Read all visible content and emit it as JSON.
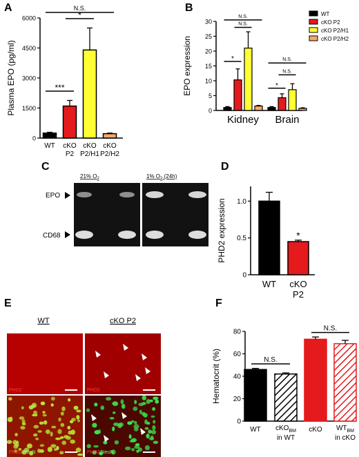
{
  "chart_data": [
    {
      "panel": "A",
      "type": "bar",
      "ylabel": "Plasma EPO (pg/ml)",
      "ylim": [
        0,
        6000
      ],
      "yticks": [
        0,
        1500,
        3000,
        4500,
        6000
      ],
      "category_lines": [
        [
          "WT"
        ],
        [
          "cKO",
          "P2"
        ],
        [
          "cKO",
          "P2/H1"
        ],
        [
          "cKO",
          "P2/H2"
        ]
      ],
      "values": [
        250,
        1600,
        4400,
        220
      ],
      "errors": [
        40,
        280,
        1100,
        30
      ],
      "colors": [
        "#000000",
        "#e41a1c",
        "#ffff33",
        "#f5a96b"
      ],
      "significance": [
        {
          "from": 0,
          "to": 1,
          "label": "***"
        },
        {
          "from": 1,
          "to": 2,
          "label": "*"
        },
        {
          "from": 0,
          "to": 3,
          "label": "N.S."
        }
      ]
    },
    {
      "panel": "B",
      "type": "bar",
      "ylabel": "EPO expression",
      "ylim": [
        0,
        30
      ],
      "yticks": [
        0,
        5,
        10,
        15,
        20,
        25,
        30
      ],
      "groups": [
        "Kidney",
        "Brain"
      ],
      "series": [
        {
          "name": "WT",
          "color": "#000000",
          "values": [
            1.0,
            1.0
          ],
          "errors": [
            0.3,
            0.3
          ]
        },
        {
          "name": "cKO P2",
          "color": "#e41a1c",
          "values": [
            10.3,
            4.3
          ],
          "errors": [
            3.7,
            1.3
          ]
        },
        {
          "name": "cKO P2/H1",
          "color": "#ffff33",
          "values": [
            21.0,
            7.0
          ],
          "errors": [
            5.5,
            2.0
          ]
        },
        {
          "name": "cKO P2/H2",
          "color": "#f5a96b",
          "values": [
            1.5,
            0.7
          ],
          "errors": [
            0.2,
            0.2
          ]
        }
      ],
      "significance": [
        {
          "group": 0,
          "from": 0,
          "to": 1,
          "label": "*",
          "y": 16.5
        },
        {
          "group": 0,
          "from": 1,
          "to": 2,
          "label": "N.S.",
          "y": 28
        },
        {
          "group": 0,
          "from": 0,
          "to": 3,
          "label": "N.S.",
          "y": 30.5
        },
        {
          "group": 1,
          "from": 0,
          "to": 1,
          "label": "*",
          "y": 7.5
        },
        {
          "group": 1,
          "from": 1,
          "to": 2,
          "label": "N.S.",
          "y": 12
        },
        {
          "group": 1,
          "from": 0,
          "to": 3,
          "label": "N.S.",
          "y": 16
        }
      ],
      "legend_position": "top-right"
    },
    {
      "panel": "D",
      "type": "bar",
      "ylabel": "PHD2 expression",
      "ylim": [
        0,
        1.0
      ],
      "yticks": [
        0,
        0.5,
        1.0
      ],
      "ytick_labels": [
        "0",
        "0.5",
        "1.0"
      ],
      "category_lines": [
        [
          "WT"
        ],
        [
          "cKO",
          "P2"
        ]
      ],
      "values": [
        1.0,
        0.45
      ],
      "errors": [
        0.12,
        0.02
      ],
      "colors": [
        "#000000",
        "#e41a1c"
      ],
      "annotation": "*"
    },
    {
      "panel": "F",
      "type": "bar",
      "ylabel": "Hematocrit (%)",
      "ylim": [
        0,
        80
      ],
      "yticks": [
        0,
        20,
        40,
        60,
        80
      ],
      "values": [
        46,
        42,
        73,
        69
      ],
      "errors": [
        1,
        1,
        2,
        3
      ],
      "colors": [
        "#000000",
        "#000000",
        "#e41a1c",
        "#e41a1c"
      ],
      "hatched": [
        false,
        true,
        false,
        true
      ],
      "significance": [
        {
          "from": 0,
          "to": 1,
          "label": "N.S."
        },
        {
          "from": 2,
          "to": 3,
          "label": "N.S."
        }
      ]
    }
  ],
  "panel_labels": [
    "A",
    "B",
    "C",
    "D",
    "E",
    "F"
  ],
  "f_labels": {
    "wt": "WT",
    "cko_bm_main": "cKO",
    "cko_bm_sub": "BM",
    "cko_bm_line2": "in WT",
    "cko": "cKO",
    "wt_bm_main": "WT",
    "wt_bm_sub": "BM",
    "wt_bm_line2": "in cKO"
  },
  "blot": {
    "header1_main": "21% O",
    "header1_sub": "2",
    "header2_main": "1% O",
    "header2_sub": "2",
    "header2_tail": " (24h)",
    "row1": "EPO",
    "row2": "CD68"
  },
  "micro": {
    "wt_title": "WT",
    "cko_title": "cKO P2",
    "phd2": "PHD2",
    "slash_neun": "/NeuN"
  }
}
